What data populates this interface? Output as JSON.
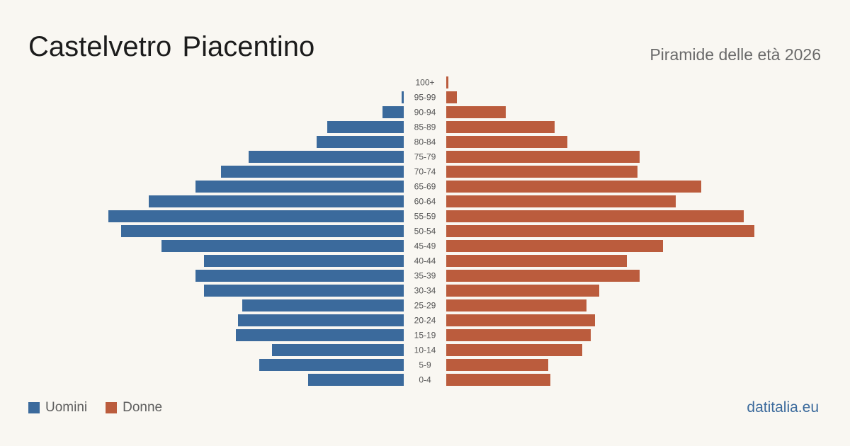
{
  "header": {
    "title": "Castelvetro  Piacentino",
    "subtitle": "Piramide delle età 2026"
  },
  "legend": {
    "men_label": "Uomini",
    "women_label": "Donne"
  },
  "footer": {
    "brand": "datitalia.eu"
  },
  "colors": {
    "men": "#3b6a9c",
    "women": "#bb5c3d",
    "background": "#f9f7f2"
  },
  "chart_data": {
    "type": "bar",
    "orientation": "horizontal-pyramid",
    "categories": [
      "100+",
      "95-99",
      "90-94",
      "85-89",
      "80-84",
      "75-79",
      "70-74",
      "65-69",
      "60-64",
      "55-59",
      "50-54",
      "45-49",
      "40-44",
      "35-39",
      "30-34",
      "25-29",
      "20-24",
      "15-19",
      "10-14",
      "5-9",
      "0-4"
    ],
    "series": [
      {
        "name": "Uomini",
        "values": [
          0,
          1,
          10,
          36,
          41,
          73,
          86,
          98,
          120,
          139,
          133,
          114,
          94,
          98,
          94,
          76,
          78,
          79,
          62,
          68,
          45
        ]
      },
      {
        "name": "Donne",
        "values": [
          1,
          5,
          28,
          51,
          57,
          91,
          90,
          120,
          108,
          140,
          145,
          102,
          85,
          91,
          72,
          66,
          70,
          68,
          64,
          48,
          49
        ]
      }
    ],
    "xlim": [
      0,
      150
    ],
    "grid": false,
    "legend_position": "bottom-left"
  }
}
